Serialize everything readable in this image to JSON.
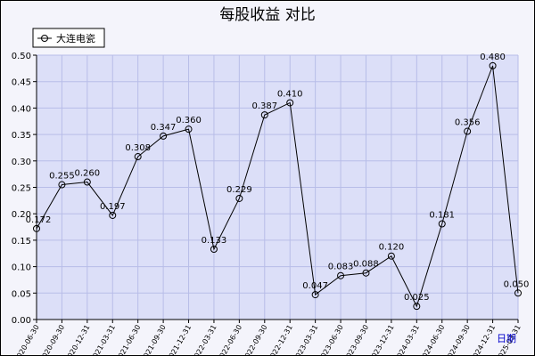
{
  "chart_data": {
    "type": "line",
    "title": "每股收益  对比",
    "xlabel": "日期",
    "ylabel": "",
    "ylim": [
      0,
      0.5
    ],
    "yticks": [
      "0.00",
      "0.05",
      "0.10",
      "0.15",
      "0.20",
      "0.25",
      "0.30",
      "0.35",
      "0.40",
      "0.45",
      "0.50"
    ],
    "grid": true,
    "legend_position": "top-left",
    "categories": [
      "2020-06-30",
      "2020-09-30",
      "2020-12-31",
      "2021-03-31",
      "2021-06-30",
      "2021-09-30",
      "2021-12-31",
      "2022-03-31",
      "2022-06-30",
      "2022-09-30",
      "2022-12-31",
      "2023-03-31",
      "2023-06-30",
      "2023-09-30",
      "2023-12-31",
      "2024-03-31",
      "2024-06-30",
      "2024-09-30",
      "2024-12-31",
      "2025-03-31"
    ],
    "series": [
      {
        "name": "大连电瓷",
        "color": "#000000",
        "values": [
          0.172,
          0.255,
          0.26,
          0.197,
          0.308,
          0.347,
          0.36,
          0.133,
          0.229,
          0.387,
          0.41,
          0.047,
          0.083,
          0.088,
          0.12,
          0.025,
          0.181,
          0.356,
          0.48,
          0.05
        ],
        "labels": [
          "0.172",
          "0.255",
          "0.260",
          "0.197",
          "0.308",
          "0.347",
          "0.360",
          "0.133",
          "0.229",
          "0.387",
          "0.410",
          "0.047",
          "0.083",
          "0.088",
          "0.120",
          "0.025",
          "0.181",
          "0.356",
          "0.480",
          "0.050"
        ]
      }
    ]
  },
  "colors": {
    "plot_background": "#dcdff8",
    "grid": "#b8bde8",
    "line": "#000000"
  }
}
